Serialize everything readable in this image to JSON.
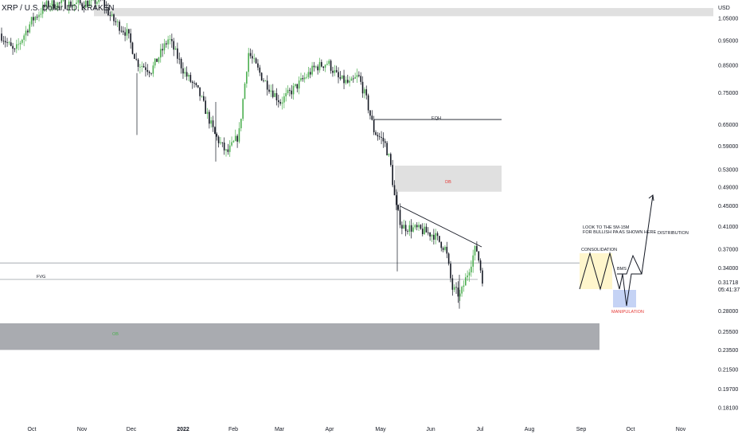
{
  "symbol": {
    "title": "XRP / U.S. Dollar, 1D, KRAKEN",
    "currency": "USD"
  },
  "colors": {
    "up": "#26a69a",
    "up_body": "#4caf50",
    "down": "#131722",
    "zone_gray": "#e0e0e0",
    "zone_dark": "#a9abb0",
    "ob_text": "#4caf50",
    "db_text": "#e53935",
    "manip_text": "#e53935",
    "consolidation_fill": "#fff6cc",
    "manip_fill": "#c5d3f5",
    "line": "#131722"
  },
  "price_axis": {
    "scale": "log",
    "ticks": [
      "1.05000",
      "0.95000",
      "0.85000",
      "0.75000",
      "0.65000",
      "0.59000",
      "0.53000",
      "0.49000",
      "0.45000",
      "0.41000",
      "0.37000",
      "0.34000",
      "0.28000",
      "0.25500",
      "0.23500",
      "0.21500",
      "0.19700",
      "0.18100"
    ],
    "current_price": "0.31718",
    "countdown": "05:41:37"
  },
  "time_axis": {
    "labels": [
      "Oct",
      "Nov",
      "Dec",
      "2022",
      "Feb",
      "Mar",
      "Apr",
      "May",
      "Jun",
      "Jul",
      "Aug",
      "Sep",
      "Oct",
      "Nov"
    ]
  },
  "annotations": {
    "eqh": "EQH",
    "db": "DB",
    "fvg": "FVG",
    "ob": "OB",
    "consolidation": "CONSOLIDATION",
    "bms": "BMS",
    "manipulation": "MANIPULATION",
    "distribution": "DISTRIBUTION",
    "note_line1": "LOOK TO THE 5M-15M",
    "note_line2": "FOR BULLISH PA AS SHOWN HERE"
  },
  "chart_data": {
    "type": "candlestick",
    "title": "XRP / U.S. Dollar, 1D, KRAKEN",
    "y_scale": "log",
    "ylim": [
      0.175,
      1.15
    ],
    "price_path": {
      "dates": [
        "Oct",
        "Nov",
        "Dec",
        "2022",
        "Feb",
        "Mar",
        "Apr",
        "May",
        "Jun",
        "Jul"
      ],
      "approx_close": [
        1.05,
        1.1,
        0.95,
        0.83,
        0.62,
        0.78,
        0.82,
        0.62,
        0.4,
        0.32
      ]
    },
    "zones": [
      {
        "name": "top supply zone",
        "low": 1.06,
        "high": 1.1
      },
      {
        "name": "DB",
        "low": 0.48,
        "high": 0.54
      },
      {
        "name": "FVG",
        "low": 0.323,
        "high": 0.348
      },
      {
        "name": "OB",
        "low": 0.235,
        "high": 0.265
      }
    ],
    "levels": [
      {
        "name": "EQH",
        "price": 0.665
      }
    ]
  }
}
